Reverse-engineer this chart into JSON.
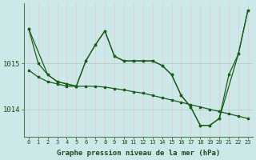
{
  "xlabel": "Graphe pression niveau de la mer (hPa)",
  "bg_color": "#cce8e8",
  "vgrid_color": "#e8c8c8",
  "hgrid_color": "#c0c0c0",
  "line_color": "#1a5c1a",
  "ylim": [
    1013.4,
    1016.3
  ],
  "yticks": [
    1014,
    1015
  ],
  "line1_x": [
    0,
    1,
    2,
    3,
    4,
    5,
    6,
    7,
    8,
    9,
    10,
    11,
    12,
    13,
    14,
    15,
    16,
    17,
    18,
    19,
    20,
    21,
    22,
    23
  ],
  "line1_y": [
    1015.75,
    1015.0,
    1014.75,
    1014.6,
    1014.55,
    1014.5,
    1015.05,
    1015.4,
    1015.7,
    1015.15,
    1015.05,
    1015.05,
    1015.05,
    1015.05,
    1014.95,
    1014.75,
    1014.3,
    1014.05,
    1013.65,
    1013.65,
    1013.8,
    1014.75,
    1015.2,
    1016.15
  ],
  "line2_x": [
    0,
    1,
    2,
    3,
    4,
    5,
    6,
    7,
    8,
    9,
    10,
    11,
    12,
    13,
    14,
    15,
    16,
    17,
    18,
    19,
    20,
    21,
    22,
    23
  ],
  "line2_y": [
    1014.85,
    1014.7,
    1014.6,
    1014.55,
    1014.5,
    1014.5,
    1014.5,
    1014.5,
    1014.48,
    1014.45,
    1014.42,
    1014.38,
    1014.35,
    1014.3,
    1014.25,
    1014.2,
    1014.15,
    1014.1,
    1014.05,
    1014.0,
    1013.95,
    1013.9,
    1013.85,
    1013.8
  ],
  "line3_x": [
    0,
    2,
    3,
    4,
    5,
    6,
    7,
    8,
    9,
    10,
    11,
    12,
    13,
    14,
    15,
    16,
    17,
    18,
    19,
    20,
    22,
    23
  ],
  "line3_y": [
    1015.75,
    1014.75,
    1014.6,
    1014.55,
    1014.5,
    1015.05,
    1015.4,
    1015.7,
    1015.15,
    1015.05,
    1015.05,
    1015.05,
    1015.05,
    1014.95,
    1014.75,
    1014.3,
    1014.05,
    1013.65,
    1013.65,
    1013.8,
    1015.2,
    1016.15
  ]
}
